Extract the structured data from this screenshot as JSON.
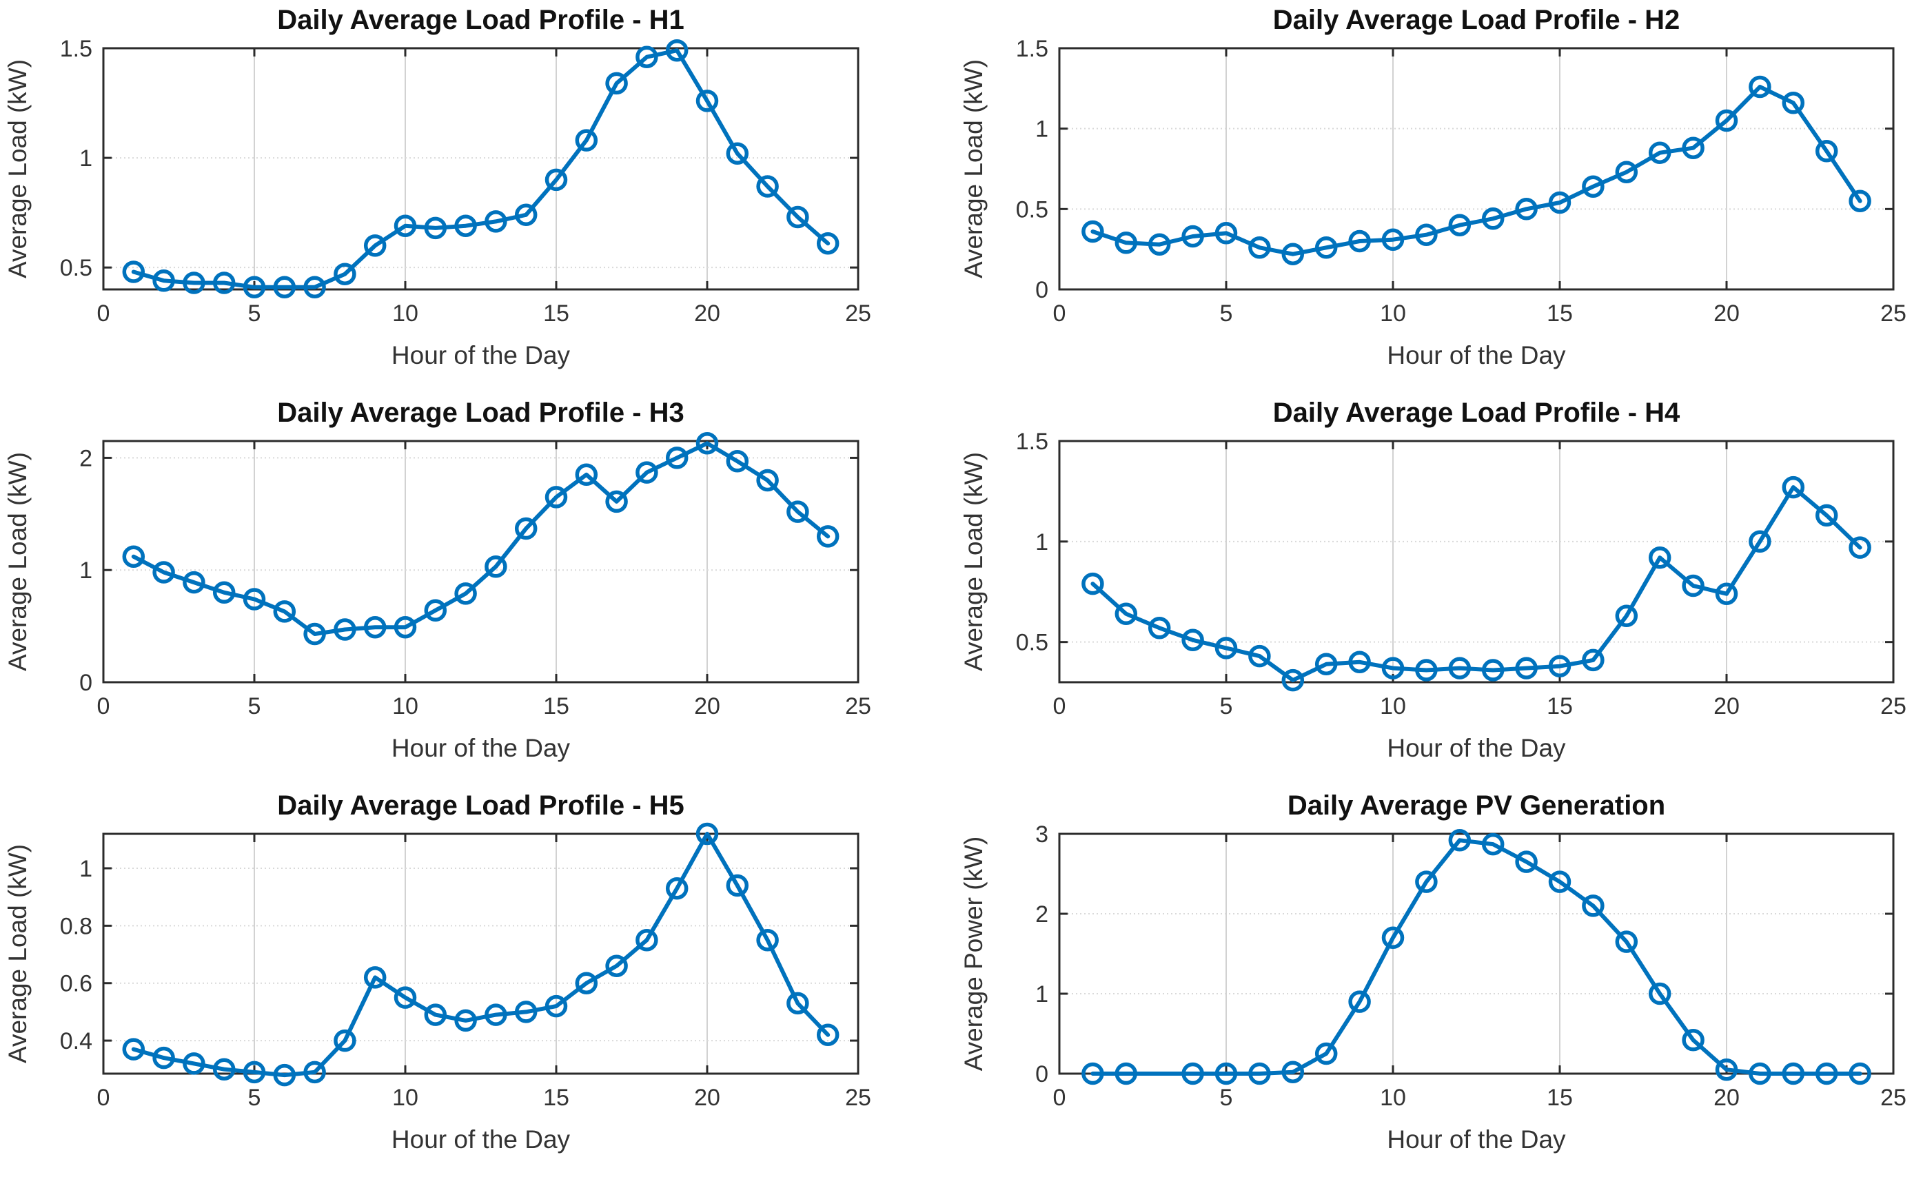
{
  "figure": {
    "background_color": "#ffffff",
    "line_color": "#0072BD",
    "spine_color": "#2b2b2b",
    "grid_color": "#d6d6d6"
  },
  "chart_data": [
    {
      "id": "h1",
      "type": "line",
      "title": "Daily Average Load Profile - H1",
      "xlabel": "Hour of the Day",
      "ylabel": "Average Load (kW)",
      "marker": "circle",
      "grid": true,
      "legend": "none",
      "x": [
        1,
        2,
        3,
        4,
        5,
        6,
        7,
        8,
        9,
        10,
        11,
        12,
        13,
        14,
        15,
        16,
        17,
        18,
        19,
        20,
        21,
        22,
        23,
        24
      ],
      "y": [
        0.48,
        0.44,
        0.43,
        0.43,
        0.41,
        0.41,
        0.41,
        0.47,
        0.6,
        0.69,
        0.68,
        0.69,
        0.71,
        0.74,
        0.9,
        1.08,
        1.34,
        1.46,
        1.49,
        1.26,
        1.02,
        0.87,
        0.73,
        0.61
      ],
      "xlim": [
        0,
        25
      ],
      "ylim": [
        0.4,
        1.5
      ],
      "xticks": [
        0,
        5,
        10,
        15,
        20,
        25
      ],
      "xtick_labels": [
        "0",
        "5",
        "10",
        "15",
        "20",
        "25"
      ],
      "yticks": [
        0.5,
        1,
        1.5
      ],
      "ytick_labels": [
        "0.5",
        "1",
        "1.5"
      ],
      "missing_markers": []
    },
    {
      "id": "h2",
      "type": "line",
      "title": "Daily Average Load Profile - H2",
      "xlabel": "Hour of the Day",
      "ylabel": "Average Load (kW)",
      "marker": "circle",
      "grid": true,
      "legend": "none",
      "x": [
        1,
        2,
        3,
        4,
        5,
        6,
        7,
        8,
        9,
        10,
        11,
        12,
        13,
        14,
        15,
        16,
        17,
        18,
        19,
        20,
        21,
        22,
        23,
        24
      ],
      "y": [
        0.36,
        0.29,
        0.28,
        0.33,
        0.35,
        0.26,
        0.22,
        0.26,
        0.3,
        0.31,
        0.34,
        0.4,
        0.44,
        0.5,
        0.54,
        0.64,
        0.73,
        0.85,
        0.88,
        1.05,
        1.26,
        1.16,
        0.86,
        0.55
      ],
      "xlim": [
        0,
        25
      ],
      "ylim": [
        0,
        1.5
      ],
      "xticks": [
        0,
        5,
        10,
        15,
        20,
        25
      ],
      "xtick_labels": [
        "0",
        "5",
        "10",
        "15",
        "20",
        "25"
      ],
      "yticks": [
        0,
        0.5,
        1,
        1.5
      ],
      "ytick_labels": [
        "0",
        "0.5",
        "1",
        "1.5"
      ],
      "missing_markers": []
    },
    {
      "id": "h3",
      "type": "line",
      "title": "Daily Average Load Profile - H3",
      "xlabel": "Hour of the Day",
      "ylabel": "Average Load (kW)",
      "marker": "circle",
      "grid": true,
      "legend": "none",
      "x": [
        1,
        2,
        3,
        4,
        5,
        6,
        7,
        8,
        9,
        10,
        11,
        12,
        13,
        14,
        15,
        16,
        17,
        18,
        19,
        20,
        21,
        22,
        23,
        24
      ],
      "y": [
        1.12,
        0.98,
        0.89,
        0.8,
        0.74,
        0.63,
        0.43,
        0.47,
        0.49,
        0.49,
        0.64,
        0.79,
        1.03,
        1.37,
        1.65,
        1.85,
        1.61,
        1.87,
        2.0,
        2.13,
        1.97,
        1.8,
        1.52,
        1.3
      ],
      "xlim": [
        0,
        25
      ],
      "ylim": [
        0,
        2.15
      ],
      "xticks": [
        0,
        5,
        10,
        15,
        20,
        25
      ],
      "xtick_labels": [
        "0",
        "5",
        "10",
        "15",
        "20",
        "25"
      ],
      "yticks": [
        0,
        1,
        2
      ],
      "ytick_labels": [
        "0",
        "1",
        "2"
      ],
      "missing_markers": []
    },
    {
      "id": "h4",
      "type": "line",
      "title": "Daily Average Load Profile - H4",
      "xlabel": "Hour of the Day",
      "ylabel": "Average Load (kW)",
      "marker": "circle",
      "grid": true,
      "legend": "none",
      "x": [
        1,
        2,
        3,
        4,
        5,
        6,
        7,
        8,
        9,
        10,
        11,
        12,
        13,
        14,
        15,
        16,
        17,
        18,
        19,
        20,
        21,
        22,
        23,
        24
      ],
      "y": [
        0.79,
        0.64,
        0.57,
        0.51,
        0.47,
        0.43,
        0.31,
        0.39,
        0.4,
        0.37,
        0.36,
        0.37,
        0.36,
        0.37,
        0.38,
        0.41,
        0.63,
        0.92,
        0.78,
        0.74,
        1.0,
        1.27,
        1.13,
        0.97
      ],
      "xlim": [
        0,
        25
      ],
      "ylim": [
        0.3,
        1.5
      ],
      "xticks": [
        0,
        5,
        10,
        15,
        20,
        25
      ],
      "xtick_labels": [
        "0",
        "5",
        "10",
        "15",
        "20",
        "25"
      ],
      "yticks": [
        0.5,
        1,
        1.5
      ],
      "ytick_labels": [
        "0.5",
        "1",
        "1.5"
      ],
      "missing_markers": []
    },
    {
      "id": "h5",
      "type": "line",
      "title": "Daily Average Load Profile - H5",
      "xlabel": "Hour of the Day",
      "ylabel": "Average Load (kW)",
      "marker": "circle",
      "grid": true,
      "legend": "none",
      "x": [
        1,
        2,
        3,
        4,
        5,
        6,
        7,
        8,
        9,
        10,
        11,
        12,
        13,
        14,
        15,
        16,
        17,
        18,
        19,
        20,
        21,
        22,
        23,
        24
      ],
      "y": [
        0.37,
        0.34,
        0.32,
        0.3,
        0.29,
        0.28,
        0.29,
        0.4,
        0.62,
        0.55,
        0.49,
        0.47,
        0.49,
        0.5,
        0.52,
        0.6,
        0.66,
        0.75,
        0.93,
        1.12,
        0.94,
        0.75,
        0.53,
        0.42
      ],
      "xlim": [
        0,
        25
      ],
      "ylim": [
        0.285,
        1.12
      ],
      "xticks": [
        0,
        5,
        10,
        15,
        20,
        25
      ],
      "xtick_labels": [
        "0",
        "5",
        "10",
        "15",
        "20",
        "25"
      ],
      "yticks": [
        0.4,
        0.6,
        0.8,
        1
      ],
      "ytick_labels": [
        "0.4",
        "0.6",
        "0.8",
        "1"
      ],
      "missing_markers": []
    },
    {
      "id": "pv",
      "type": "line",
      "title": "Daily Average PV Generation",
      "xlabel": "Hour of the Day",
      "ylabel": "Average Power (kW)",
      "marker": "circle",
      "grid": true,
      "legend": "none",
      "x": [
        1,
        2,
        3,
        4,
        5,
        6,
        7,
        8,
        9,
        10,
        11,
        12,
        13,
        14,
        15,
        16,
        17,
        18,
        19,
        20,
        21,
        22,
        23,
        24
      ],
      "y": [
        0,
        0,
        0,
        0,
        0,
        0,
        0.02,
        0.25,
        0.9,
        1.7,
        2.4,
        2.92,
        2.87,
        2.65,
        2.4,
        2.1,
        1.65,
        1.0,
        0.42,
        0.05,
        0,
        0,
        0,
        0
      ],
      "xlim": [
        0,
        25
      ],
      "ylim": [
        0,
        3
      ],
      "xticks": [
        0,
        5,
        10,
        15,
        20,
        25
      ],
      "xtick_labels": [
        "0",
        "5",
        "10",
        "15",
        "20",
        "25"
      ],
      "yticks": [
        0,
        1,
        2,
        3
      ],
      "ytick_labels": [
        "0",
        "1",
        "2",
        "3"
      ],
      "missing_markers": [
        3
      ]
    }
  ]
}
